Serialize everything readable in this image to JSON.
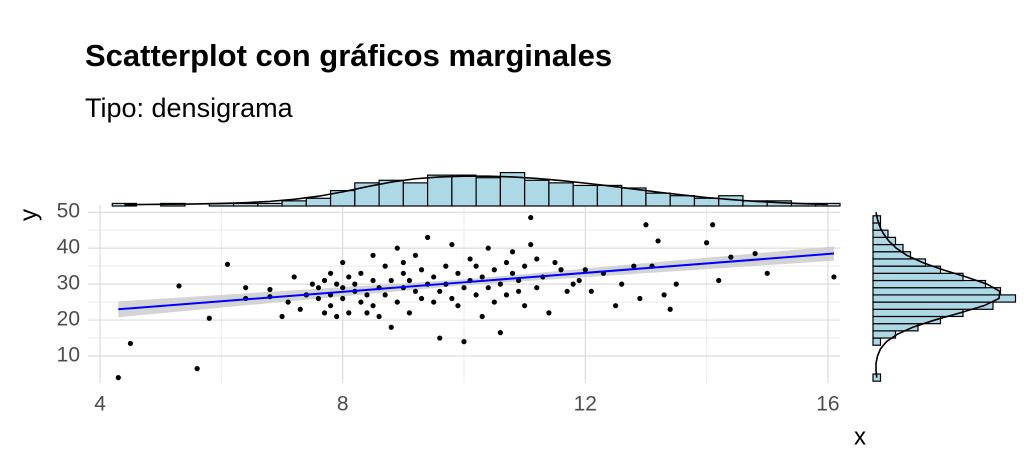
{
  "chart_data": {
    "type": "scatter",
    "title": "Scatterplot con gráficos marginales",
    "subtitle": "Tipo: densigrama",
    "x_label": "x",
    "y_label": "y",
    "xlim": [
      3.8,
      16.2
    ],
    "ylim": [
      2.5,
      52
    ],
    "xticks": [
      4,
      8,
      12,
      16
    ],
    "yticks": [
      10,
      20,
      30,
      40,
      50
    ],
    "grid": true,
    "point_color": "#000000",
    "x": [
      4.3,
      4.5,
      5.3,
      5.6,
      5.8,
      6.1,
      6.4,
      6.4,
      6.8,
      6.8,
      7.0,
      7.1,
      7.2,
      7.3,
      7.4,
      7.5,
      7.6,
      7.6,
      7.7,
      7.7,
      7.8,
      7.8,
      7.8,
      7.9,
      7.9,
      8.0,
      8.0,
      8.0,
      8.1,
      8.1,
      8.2,
      8.2,
      8.3,
      8.3,
      8.4,
      8.4,
      8.5,
      8.5,
      8.5,
      8.6,
      8.6,
      8.7,
      8.7,
      8.8,
      8.8,
      8.9,
      8.9,
      9.0,
      9.0,
      9.0,
      9.1,
      9.1,
      9.2,
      9.2,
      9.3,
      9.3,
      9.4,
      9.4,
      9.5,
      9.5,
      9.6,
      9.6,
      9.7,
      9.7,
      9.8,
      9.8,
      9.9,
      9.9,
      10.0,
      10.0,
      10.1,
      10.1,
      10.2,
      10.2,
      10.3,
      10.3,
      10.4,
      10.4,
      10.5,
      10.5,
      10.6,
      10.6,
      10.7,
      10.7,
      10.8,
      10.8,
      10.9,
      10.9,
      11.0,
      11.0,
      11.1,
      11.1,
      11.2,
      11.2,
      11.3,
      11.4,
      11.5,
      11.6,
      11.7,
      11.8,
      11.9,
      12.0,
      12.1,
      12.3,
      12.5,
      12.6,
      12.8,
      12.9,
      13.0,
      13.1,
      13.2,
      13.3,
      13.4,
      13.5,
      14.0,
      14.1,
      14.2,
      14.4,
      14.8,
      15.0,
      16.1
    ],
    "y": [
      4,
      13.5,
      29.5,
      6.5,
      20.5,
      35.5,
      26,
      29,
      28.5,
      26.5,
      21,
      25,
      32,
      23,
      27,
      30,
      26,
      29,
      22,
      31,
      24,
      27,
      33,
      21,
      30,
      29,
      26,
      36,
      32,
      22,
      30,
      28,
      25,
      33,
      27,
      22,
      31,
      24,
      38,
      29,
      21,
      35,
      27,
      31,
      18,
      25,
      40,
      29,
      33,
      36,
      22,
      31,
      28,
      38,
      26,
      34,
      30,
      43,
      25,
      32,
      28,
      15,
      35,
      30,
      41,
      26,
      24,
      33,
      14,
      29,
      37,
      31,
      27,
      35,
      21,
      32,
      29,
      40,
      25,
      34,
      30,
      16.5,
      36,
      27,
      33,
      39,
      28,
      31,
      35,
      24,
      41,
      48.5,
      29,
      37,
      32,
      22,
      36,
      34,
      28,
      30,
      31,
      34,
      28,
      33,
      24,
      30,
      35,
      26,
      46.5,
      35,
      42,
      27,
      23,
      30,
      41.5,
      46.5,
      31,
      37.5,
      38.5,
      33,
      32
    ],
    "fit": {
      "color": "#0000ff",
      "band_color": "#cccccc",
      "x": [
        4.3,
        10,
        16.1
      ],
      "y": [
        23,
        30.5,
        38.5
      ],
      "lower": [
        20.8,
        29.7,
        36.5
      ],
      "upper": [
        25.2,
        31.3,
        40.5
      ]
    },
    "top_hist": {
      "fill": "#add8e6",
      "ylim": [
        0,
        14
      ],
      "bins": [
        4.2,
        4.6,
        5.0,
        5.4,
        5.8,
        6.2,
        6.6,
        7.0,
        7.4,
        7.8,
        8.2,
        8.6,
        9.0,
        9.4,
        9.8,
        10.2,
        10.6,
        11.0,
        11.4,
        11.8,
        12.2,
        12.6,
        13.0,
        13.4,
        13.8,
        14.2,
        14.6,
        15.0,
        15.4,
        15.8,
        16.2
      ],
      "counts": [
        1,
        0,
        1,
        0,
        1,
        1,
        1,
        2,
        3,
        6,
        9,
        10,
        9,
        12,
        12,
        11,
        13,
        10,
        9,
        8,
        8,
        7,
        5,
        4,
        3,
        4,
        2,
        2,
        1,
        1
      ],
      "density": [
        0.5,
        0.6,
        0.7,
        0.8,
        1,
        1.3,
        1.8,
        2.6,
        3.8,
        5.5,
        7.5,
        9.3,
        10.6,
        11.3,
        11.6,
        11.6,
        11.3,
        10.7,
        9.9,
        8.9,
        7.8,
        6.6,
        5.4,
        4.3,
        3.3,
        2.5,
        1.8,
        1.3,
        0.9,
        0.6
      ]
    },
    "right_hist": {
      "fill": "#add8e6",
      "xlim": [
        0,
        20
      ],
      "bins": [
        3,
        5,
        7,
        9,
        11,
        13,
        15,
        17,
        19,
        21,
        23,
        25,
        27,
        29,
        31,
        33,
        35,
        37,
        39,
        41,
        43,
        45,
        47,
        49,
        51
      ],
      "counts": [
        1,
        0,
        0,
        0,
        0,
        1,
        3,
        6,
        9,
        12,
        16,
        19,
        17,
        15,
        12,
        9,
        7,
        5,
        4,
        3,
        2,
        1,
        1,
        0
      ],
      "density": [
        0.5,
        0.4,
        0.4,
        0.6,
        1,
        1.8,
        3.2,
        5.3,
        8.2,
        11.6,
        14.8,
        16.8,
        16.9,
        15.2,
        12.4,
        9.3,
        6.6,
        4.5,
        3.1,
        2.1,
        1.4,
        0.9,
        0.6,
        0.4
      ]
    }
  }
}
